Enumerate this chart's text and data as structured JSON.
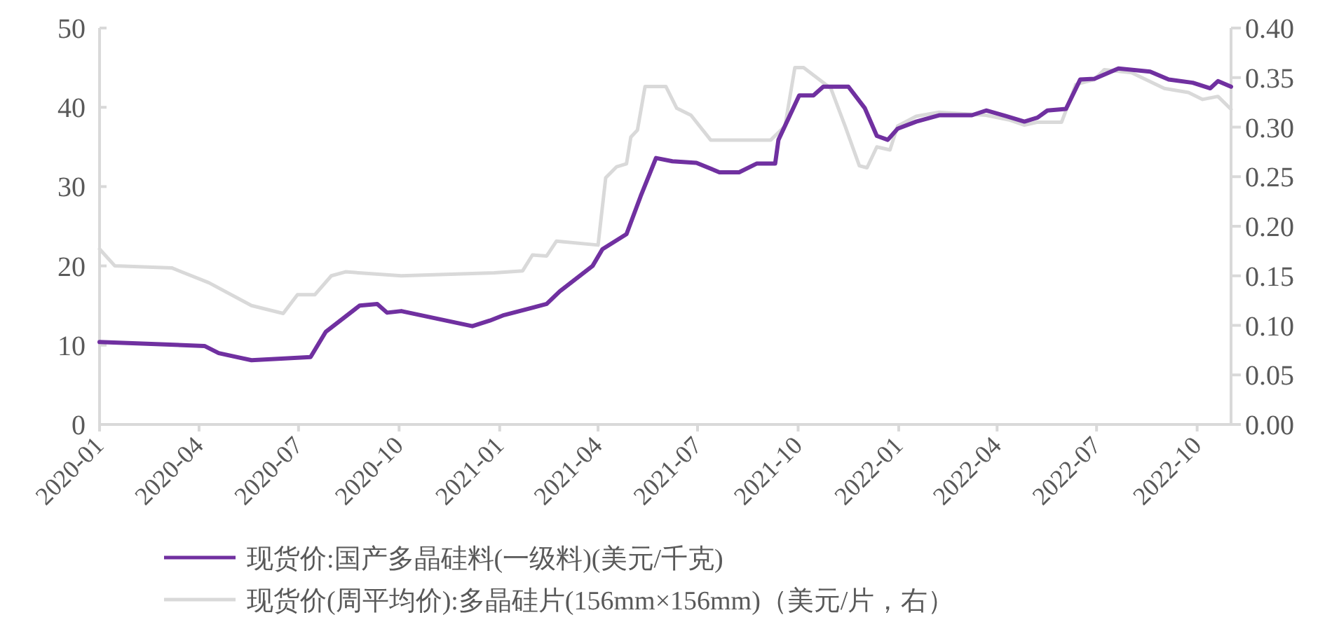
{
  "chart_data": {
    "type": "line",
    "grid": false,
    "legend": "bottom",
    "marker": "none",
    "line_style": "solid",
    "xlim": [
      "2020-01-01",
      "2022-11-01"
    ],
    "xticks": [
      "2020-01",
      "2020-04",
      "2020-07",
      "2020-10",
      "2021-01",
      "2021-04",
      "2021-07",
      "2021-10",
      "2022-01",
      "2022-04",
      "2022-07",
      "2022-10"
    ],
    "ylim": [
      0,
      50
    ],
    "yticks": [
      0,
      10,
      20,
      30,
      40,
      50
    ],
    "y2lim": [
      0,
      0.4
    ],
    "y2ticks": [
      {
        "value": 0,
        "label": "0.00"
      },
      {
        "value": 0.05,
        "label": "0.05"
      },
      {
        "value": 0.1,
        "label": "0.10"
      },
      {
        "value": 0.15,
        "label": "0.15"
      },
      {
        "value": 0.2,
        "label": "0.20"
      },
      {
        "value": 0.25,
        "label": "0.25"
      },
      {
        "value": 0.3,
        "label": "0.30"
      },
      {
        "value": 0.35,
        "label": "0.35"
      },
      {
        "value": 0.4,
        "label": "0.40"
      }
    ],
    "series": [
      {
        "name": "现货价:国产多晶硅料(一级料)(美元/千克)",
        "color": "#7030a0",
        "axis": "y",
        "x": [
          "2020-01-01",
          "2020-04-06",
          "2020-04-19",
          "2020-05-19",
          "2020-07-12",
          "2020-07-26",
          "2020-08-26",
          "2020-09-11",
          "2020-09-20",
          "2020-10-03",
          "2020-12-07",
          "2020-12-23",
          "2021-01-05",
          "2021-02-13",
          "2021-02-25",
          "2021-03-27",
          "2021-04-05",
          "2021-04-27",
          "2021-05-10",
          "2021-05-24",
          "2021-06-08",
          "2021-06-30",
          "2021-07-21",
          "2021-08-08",
          "2021-08-24",
          "2021-09-10",
          "2021-09-13",
          "2021-10-02",
          "2021-10-15",
          "2021-10-24",
          "2021-11-16",
          "2021-12-01",
          "2021-12-12",
          "2021-12-22",
          "2021-12-31",
          "2022-01-17",
          "2022-02-07",
          "2022-03-09",
          "2022-03-22",
          "2022-04-09",
          "2022-04-26",
          "2022-05-08",
          "2022-05-17",
          "2022-06-03",
          "2022-06-16",
          "2022-06-29",
          "2022-07-21",
          "2022-08-19",
          "2022-09-05",
          "2022-09-27",
          "2022-10-13",
          "2022-10-20",
          "2022-11-01"
        ],
        "values": [
          10.4,
          9.9,
          9.0,
          8.1,
          8.5,
          11.7,
          15.0,
          15.2,
          14.1,
          14.3,
          12.4,
          13.1,
          13.8,
          15.2,
          16.8,
          20.0,
          22.1,
          24.0,
          28.8,
          33.6,
          33.2,
          33.0,
          31.8,
          31.8,
          32.9,
          32.9,
          35.9,
          41.5,
          41.5,
          42.6,
          42.6,
          39.9,
          36.4,
          35.9,
          37.3,
          38.2,
          39.0,
          39.0,
          39.6,
          38.9,
          38.2,
          38.7,
          39.6,
          39.8,
          43.5,
          43.6,
          44.9,
          44.5,
          43.5,
          43.1,
          42.4,
          43.3,
          42.6
        ]
      },
      {
        "name": "现货价(周平均价):多晶硅片(156mm×156mm)（美元/片，右）",
        "color": "#d9d9d9",
        "axis": "y2",
        "x": [
          "2020-01-01",
          "2020-01-15",
          "2020-03-07",
          "2020-04-10",
          "2020-05-19",
          "2020-06-17",
          "2020-06-30",
          "2020-07-16",
          "2020-07-31",
          "2020-08-13",
          "2020-10-03",
          "2020-12-27",
          "2021-01-22",
          "2021-01-31",
          "2021-02-13",
          "2021-02-22",
          "2021-04-01",
          "2021-04-08",
          "2021-04-18",
          "2021-04-27",
          "2021-05-01",
          "2021-05-07",
          "2021-05-14",
          "2021-06-02",
          "2021-06-12",
          "2021-06-25",
          "2021-07-13",
          "2021-09-06",
          "2021-09-19",
          "2021-09-28",
          "2021-10-06",
          "2021-10-31",
          "2021-11-13",
          "2021-11-26",
          "2021-12-03",
          "2021-12-12",
          "2021-12-24",
          "2021-12-31",
          "2022-01-17",
          "2022-02-07",
          "2022-03-22",
          "2022-04-13",
          "2022-04-26",
          "2022-05-08",
          "2022-05-30",
          "2022-06-12",
          "2022-06-29",
          "2022-07-08",
          "2022-08-02",
          "2022-09-01",
          "2022-09-23",
          "2022-10-06",
          "2022-10-20",
          "2022-11-01"
        ],
        "values": [
          0.177,
          0.16,
          0.158,
          0.143,
          0.12,
          0.112,
          0.131,
          0.131,
          0.15,
          0.154,
          0.15,
          0.153,
          0.155,
          0.171,
          0.17,
          0.185,
          0.181,
          0.249,
          0.26,
          0.263,
          0.29,
          0.297,
          0.341,
          0.341,
          0.319,
          0.312,
          0.287,
          0.287,
          0.301,
          0.36,
          0.36,
          0.339,
          0.301,
          0.261,
          0.259,
          0.28,
          0.277,
          0.301,
          0.311,
          0.315,
          0.312,
          0.307,
          0.302,
          0.305,
          0.305,
          0.343,
          0.348,
          0.358,
          0.355,
          0.339,
          0.335,
          0.328,
          0.331,
          0.318
        ]
      }
    ]
  }
}
